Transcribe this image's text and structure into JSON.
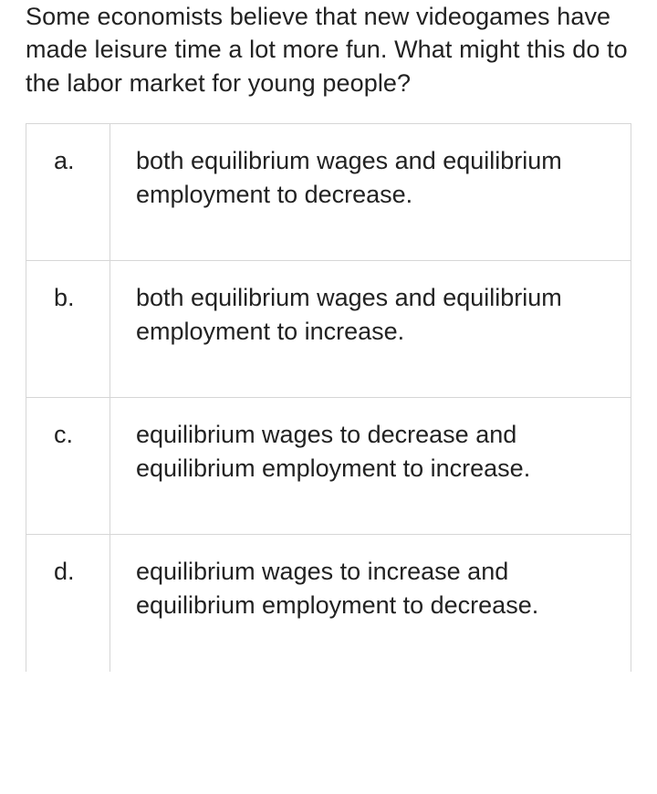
{
  "question": "Some economists believe that new videogames have made leisure time a lot more fun. What might this do to the labor market for young people?",
  "options": [
    {
      "label": "a.",
      "text": "both equilibrium wages and equilibrium employment to decrease."
    },
    {
      "label": "b.",
      "text": "both equilibrium wages and equilibrium employment to increase."
    },
    {
      "label": "c.",
      "text": "equilibrium wages to decrease and equilibrium employment to increase."
    },
    {
      "label": "d.",
      "text": "equilibrium wages to increase and equilibrium employment to decrease."
    }
  ],
  "colors": {
    "text": "#222222",
    "border": "#d6d6d6",
    "background": "#ffffff"
  },
  "typography": {
    "font_family": "-apple-system, Segoe UI, Helvetica, Arial, sans-serif",
    "font_size_pt": 20,
    "line_height": 1.35
  }
}
